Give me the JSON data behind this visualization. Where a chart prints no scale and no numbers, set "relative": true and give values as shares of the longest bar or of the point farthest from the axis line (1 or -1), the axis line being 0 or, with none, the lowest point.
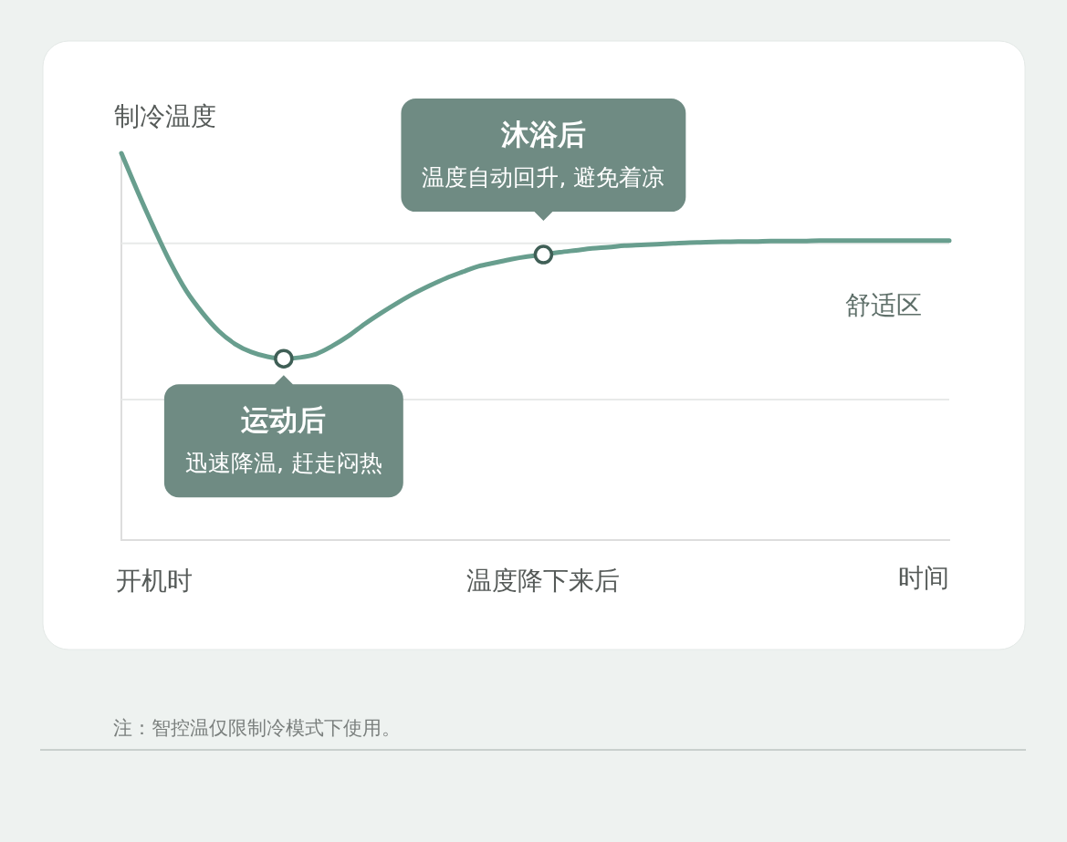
{
  "chart_data": {
    "type": "line",
    "relative": true,
    "ylabel": "制冷温度",
    "xlabel": "时间",
    "categories": [
      null,
      null,
      "开机时",
      null,
      null,
      null,
      null,
      null,
      null,
      null,
      null,
      null,
      null,
      null,
      null,
      null,
      null,
      null,
      null,
      null,
      null,
      null,
      null,
      null,
      null,
      null,
      "温度降下来后",
      null,
      null,
      null,
      null,
      null,
      null,
      null,
      null,
      null,
      null,
      null,
      null,
      null,
      null,
      null,
      null,
      null,
      null,
      null,
      null,
      null,
      null,
      null,
      null,
      null
    ],
    "series": [
      {
        "color": "#689e8e",
        "values": [
          1.0,
          0.901,
          0.807,
          0.719,
          0.644,
          0.587,
          0.54,
          0.507,
          0.486,
          0.474,
          0.469,
          0.472,
          0.481,
          0.502,
          0.528,
          0.559,
          0.587,
          0.613,
          0.637,
          0.658,
          0.677,
          0.693,
          0.708,
          0.717,
          0.726,
          0.733,
          0.738,
          0.744,
          0.749,
          0.754,
          0.757,
          0.761,
          0.763,
          0.765,
          0.767,
          0.769,
          0.77,
          0.771,
          0.772,
          0.772,
          0.773,
          0.773,
          0.773,
          0.774,
          0.774,
          0.774,
          0.774,
          0.774,
          0.774,
          0.774,
          0.774,
          0.774
        ]
      }
    ],
    "ref_lines": [
      {
        "axis": "y",
        "value": 0.767,
        "label": "舒适区",
        "color": "#e8eae9"
      },
      {
        "axis": "y",
        "value": 0.363,
        "color": "#e8eae9"
      }
    ],
    "annotations": [
      "沐浴后",
      {
        "text": "温度自动回升, 避免着凉",
        "x": "温度降下来后",
        "y": 0.738
      },
      {
        "text": "运动后",
        "y": 0.469
      },
      "迅速降温, 赶走闷热",
      "注：智控温仅限制冷模式下使用。"
    ]
  }
}
